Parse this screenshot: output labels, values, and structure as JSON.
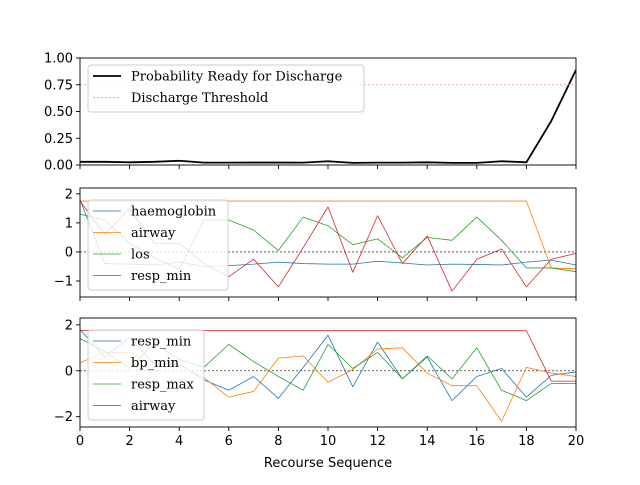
{
  "chart_data": [
    {
      "type": "line",
      "x": [
        0,
        1,
        2,
        3,
        4,
        5,
        6,
        7,
        8,
        9,
        10,
        11,
        12,
        13,
        14,
        15,
        16,
        17,
        18,
        19,
        20
      ],
      "ylim": [
        0,
        1.0
      ],
      "yticks": [
        "0.00",
        "0.25",
        "0.50",
        "0.75",
        "1.00"
      ],
      "ytick_values": [
        0,
        0.25,
        0.5,
        0.75,
        1.0
      ],
      "legend_position": "upper-left",
      "series": [
        {
          "name": "Probability Ready for Discharge",
          "color": "#000000",
          "style": "solid-thick",
          "values": [
            0.03,
            0.03,
            0.025,
            0.03,
            0.04,
            0.022,
            0.022,
            0.023,
            0.023,
            0.022,
            0.035,
            0.02,
            0.022,
            0.022,
            0.025,
            0.02,
            0.02,
            0.035,
            0.025,
            0.41,
            0.89
          ]
        },
        {
          "name": "Discharge Threshold",
          "color": "#ef8a8a",
          "style": "dotted",
          "values": [
            0.75,
            0.75,
            0.75,
            0.75,
            0.75,
            0.75,
            0.75,
            0.75,
            0.75,
            0.75,
            0.75,
            0.75,
            0.75,
            0.75,
            0.75,
            0.75,
            0.75,
            0.75,
            0.75,
            0.75,
            0.75
          ]
        }
      ]
    },
    {
      "type": "line",
      "x": [
        0,
        1,
        2,
        3,
        4,
        5,
        6,
        7,
        8,
        9,
        10,
        11,
        12,
        13,
        14,
        15,
        16,
        17,
        18,
        19,
        20
      ],
      "ylim": [
        -1.55,
        2.2
      ],
      "yticks": [
        "−1",
        "0",
        "1",
        "2"
      ],
      "ytick_values": [
        -1,
        0,
        1,
        2
      ],
      "zero_line": true,
      "legend_position": "upper-left",
      "series": [
        {
          "name": "haemoglobin",
          "color": "#1f77b4",
          "values": [
            1.8,
            -0.4,
            -0.42,
            -0.45,
            -0.35,
            -0.5,
            -0.47,
            -0.42,
            -0.35,
            -0.4,
            -0.42,
            -0.42,
            -0.32,
            -0.38,
            -0.45,
            -0.42,
            -0.43,
            -0.45,
            -0.35,
            -0.28,
            -0.45
          ]
        },
        {
          "name": "airway",
          "color": "#ff7f0e",
          "values": [
            1.75,
            1.75,
            1.75,
            1.75,
            1.75,
            1.75,
            1.75,
            1.75,
            1.75,
            1.75,
            1.75,
            1.75,
            1.75,
            1.75,
            1.75,
            1.75,
            1.75,
            1.75,
            1.75,
            -0.55,
            -0.58
          ]
        },
        {
          "name": "los",
          "color": "#2ca02c",
          "values": [
            1.3,
            1.1,
            0.3,
            -0.2,
            -0.6,
            1.1,
            1.1,
            0.75,
            0.05,
            1.2,
            0.9,
            0.25,
            0.45,
            -0.2,
            0.5,
            0.4,
            1.2,
            0.4,
            -0.55,
            -0.55,
            -0.68
          ]
        },
        {
          "name": "resp_min",
          "color": "#d62728",
          "values": [
            1.75,
            0.6,
            1.5,
            0.3,
            0.3,
            -0.4,
            -0.85,
            -0.25,
            -1.2,
            0.15,
            1.55,
            -0.7,
            1.25,
            -0.4,
            0.55,
            -1.35,
            -0.25,
            0.1,
            -1.2,
            -0.25,
            -0.05
          ]
        }
      ]
    },
    {
      "type": "line",
      "x": [
        0,
        1,
        2,
        3,
        4,
        5,
        6,
        7,
        8,
        9,
        10,
        11,
        12,
        13,
        14,
        15,
        16,
        17,
        18,
        19,
        20
      ],
      "ylim": [
        -2.45,
        2.3
      ],
      "yticks": [
        "−2",
        "0",
        "2"
      ],
      "ytick_values": [
        -2,
        0,
        2
      ],
      "zero_line": true,
      "legend_position": "upper-left",
      "xlabel": "Recourse Sequence",
      "xticks": [
        "0",
        "2",
        "4",
        "6",
        "8",
        "10",
        "12",
        "14",
        "16",
        "18",
        "20"
      ],
      "xtick_values": [
        0,
        2,
        4,
        6,
        8,
        10,
        12,
        14,
        16,
        18,
        20
      ],
      "series": [
        {
          "name": "resp_min",
          "color": "#1f77b4",
          "values": [
            1.8,
            0.6,
            1.45,
            0.3,
            0.3,
            -0.4,
            -0.85,
            -0.25,
            -1.2,
            0.15,
            1.55,
            -0.7,
            1.25,
            -0.35,
            0.6,
            -1.3,
            -0.25,
            0.1,
            -1.15,
            -0.2,
            -0.05
          ]
        },
        {
          "name": "bp_min",
          "color": "#ff7f0e",
          "values": [
            0.35,
            0.8,
            0.8,
            0.3,
            0.25,
            -0.3,
            -1.15,
            -0.9,
            0.55,
            0.65,
            -0.5,
            0.05,
            0.95,
            1.0,
            -0.1,
            -0.65,
            -0.65,
            -2.2,
            0.15,
            -0.1,
            -0.25
          ]
        },
        {
          "name": "resp_max",
          "color": "#2ca02c",
          "values": [
            1.4,
            0.85,
            0.1,
            1.2,
            0.5,
            0.15,
            1.15,
            0.4,
            -0.25,
            -0.85,
            1.15,
            0.1,
            0.8,
            -0.35,
            0.65,
            -0.35,
            1.0,
            -0.85,
            -1.3,
            -0.55,
            -0.55
          ]
        },
        {
          "name": "airway",
          "color": "#d62728",
          "values": [
            1.75,
            1.75,
            1.75,
            1.75,
            1.75,
            1.75,
            1.75,
            1.75,
            1.75,
            1.75,
            1.75,
            1.75,
            1.75,
            1.75,
            1.75,
            1.75,
            1.75,
            1.75,
            1.75,
            -0.45,
            -0.45
          ]
        }
      ]
    }
  ]
}
